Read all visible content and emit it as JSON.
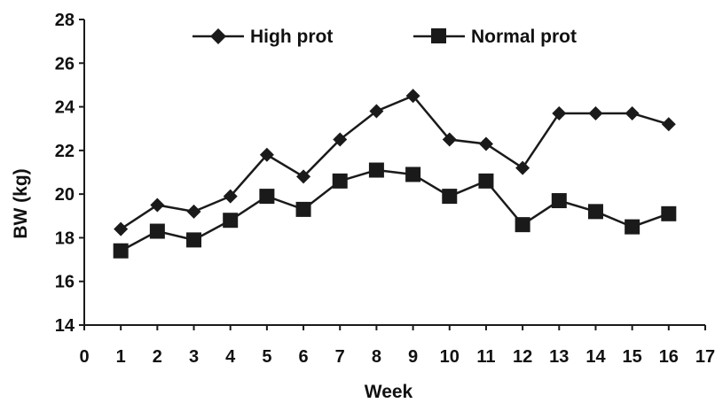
{
  "chart_data": {
    "type": "line",
    "title": "",
    "xlabel": "Week",
    "ylabel": "BW (kg)",
    "xlim": [
      0,
      17
    ],
    "ylim": [
      14,
      28
    ],
    "x_ticks": [
      0,
      1,
      2,
      3,
      4,
      5,
      6,
      7,
      8,
      9,
      10,
      11,
      12,
      13,
      14,
      15,
      16,
      17
    ],
    "y_ticks": [
      14,
      16,
      18,
      20,
      22,
      24,
      26,
      28
    ],
    "grid": false,
    "legend_position": "top",
    "x": [
      1,
      2,
      3,
      4,
      5,
      6,
      7,
      8,
      9,
      10,
      11,
      12,
      13,
      14,
      15,
      16
    ],
    "series": [
      {
        "name": "High prot",
        "marker": "diamond",
        "color": "#1a1a1a",
        "values": [
          18.4,
          19.5,
          19.2,
          19.9,
          21.8,
          20.8,
          22.5,
          23.8,
          24.5,
          22.5,
          22.3,
          21.2,
          23.7,
          23.7,
          23.7,
          23.2
        ]
      },
      {
        "name": "Normal prot",
        "marker": "square",
        "color": "#1a1a1a",
        "values": [
          17.4,
          18.3,
          17.9,
          18.8,
          19.9,
          19.3,
          20.6,
          21.1,
          20.9,
          19.9,
          20.6,
          18.6,
          19.7,
          19.2,
          18.5,
          19.1
        ]
      }
    ]
  }
}
